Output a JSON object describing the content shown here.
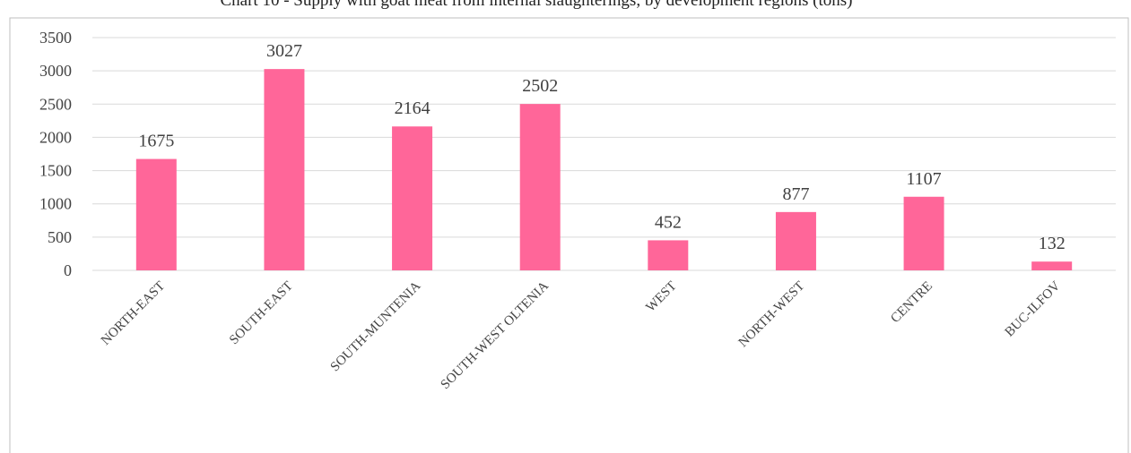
{
  "chart_data": {
    "type": "bar",
    "title": "Chart 10 - Supply with goat meat from internal slaughterings, by development regions (tons)",
    "xlabel": "",
    "ylabel": "",
    "categories": [
      "NORTH-EAST",
      "SOUTH-EAST",
      "SOUTH-MUNTENIA",
      "SOUTH-WEST OLTENIA",
      "WEST",
      "NORTH-WEST",
      "CENTRE",
      "BUC-ILFOV"
    ],
    "values": [
      1675,
      3027,
      2164,
      2502,
      452,
      877,
      1107,
      132
    ],
    "ylim": [
      0,
      3500
    ],
    "yticks": [
      0,
      500,
      1000,
      1500,
      2000,
      2500,
      3000,
      3500
    ],
    "grid": true,
    "legend": "none",
    "data_labels": true,
    "colors": {
      "bar": "#ff6699",
      "gridline": "#d9d9d9",
      "frame": "#bfbfbf"
    }
  }
}
